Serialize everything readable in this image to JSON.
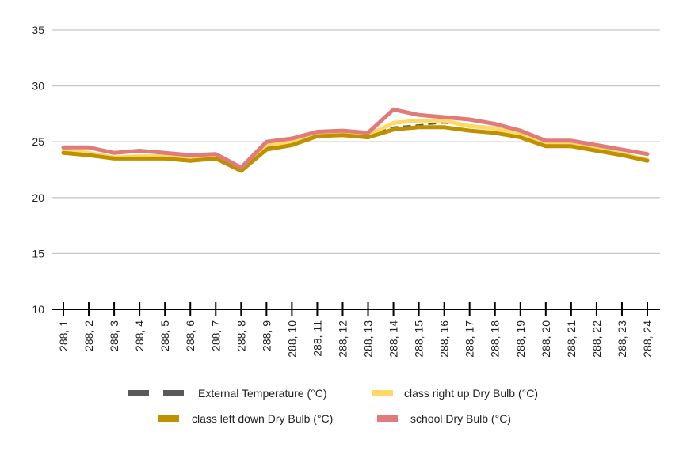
{
  "chart_data": {
    "type": "line",
    "title": "",
    "xlabel": "",
    "ylabel": "",
    "ylim": [
      10,
      35
    ],
    "yticks": [
      10,
      15,
      20,
      25,
      30,
      35
    ],
    "grid": true,
    "legend_position": "bottom",
    "categories": [
      "288, 1",
      "288, 2",
      "288, 3",
      "288, 4",
      "288, 5",
      "288, 6",
      "288, 7",
      "288, 8",
      "288, 9",
      "288, 10",
      "288, 11",
      "288, 12",
      "288, 13",
      "288, 14",
      "288, 15",
      "288, 16",
      "288, 17",
      "288, 18",
      "288, 19",
      "288, 20",
      "288, 21",
      "288, 22",
      "288, 23",
      "288, 24"
    ],
    "series": [
      {
        "name": "External Temperature (°C)",
        "color": "#595959",
        "style": "dashed",
        "values": [
          24.1,
          23.9,
          23.5,
          23.5,
          23.6,
          23.4,
          23.6,
          22.5,
          24.5,
          24.8,
          25.6,
          25.7,
          25.5,
          26.3,
          26.5,
          26.7,
          26.5,
          26.3,
          25.8,
          24.9,
          24.9,
          24.4,
          23.9,
          23.4
        ]
      },
      {
        "name": "class right up Dry Bulb (°C)",
        "color": "#FFD966",
        "style": "solid",
        "values": [
          24.2,
          24.0,
          23.6,
          23.7,
          23.7,
          23.5,
          23.7,
          22.6,
          24.7,
          25.0,
          25.6,
          25.8,
          25.6,
          26.7,
          26.9,
          26.9,
          26.4,
          26.2,
          25.7,
          24.8,
          24.8,
          24.4,
          23.9,
          23.4
        ]
      },
      {
        "name": "class left down Dry Bulb (°C)",
        "color": "#BF9000",
        "style": "solid",
        "values": [
          24.0,
          23.8,
          23.5,
          23.5,
          23.5,
          23.3,
          23.5,
          22.4,
          24.3,
          24.7,
          25.5,
          25.6,
          25.4,
          26.1,
          26.3,
          26.3,
          26.0,
          25.8,
          25.4,
          24.6,
          24.6,
          24.2,
          23.8,
          23.3
        ]
      },
      {
        "name": "school Dry Bulb (°C)",
        "color": "#E07B7B",
        "style": "solid",
        "values": [
          24.5,
          24.5,
          24.0,
          24.2,
          24.0,
          23.8,
          23.9,
          22.7,
          25.0,
          25.3,
          25.9,
          26.0,
          25.8,
          27.9,
          27.4,
          27.2,
          27.0,
          26.6,
          26.0,
          25.1,
          25.1,
          24.7,
          24.3,
          23.9
        ]
      }
    ]
  }
}
